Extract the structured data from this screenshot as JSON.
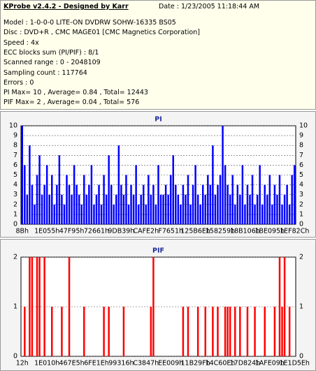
{
  "header": {
    "title": "KProbe v2.4.2 - Designed by Karr",
    "date": "Date : 1/23/2005 11:18:44 AM",
    "lines": [
      "Model : 1-0-0-0 LITE-ON DVDRW SOHW-16335 BS05",
      "Disc : DVD+R , CMC MAGE01 [CMC Magnetics Corporation]",
      "Speed : 4x",
      "ECC blocks sum (PI/PIF) : 8/1",
      "Scanned range : 0 - 2048109",
      "Sampling count : 117764",
      "Errors : 0",
      "PI Max= 10 , Average= 0.84 , Total= 12443",
      "PIF Max= 2 , Average= 0.04 , Total= 576"
    ]
  },
  "chart_data": [
    {
      "type": "bar",
      "title": "PI",
      "color": "#0000ff",
      "grid": true,
      "categories": [
        "8Bh",
        null,
        null,
        null,
        null,
        null,
        null,
        null,
        null,
        null,
        "1E055h",
        null,
        null,
        null,
        null,
        null,
        null,
        null,
        null,
        null,
        "47F95h",
        null,
        null,
        null,
        null,
        null,
        null,
        null,
        null,
        null,
        "72661h",
        null,
        null,
        null,
        null,
        null,
        null,
        null,
        null,
        null,
        "9DB39h",
        null,
        null,
        null,
        null,
        null,
        null,
        null,
        null,
        null,
        "CAFE2h",
        null,
        null,
        null,
        null,
        null,
        null,
        null,
        null,
        null,
        "F7651h",
        null,
        null,
        null,
        null,
        null,
        null,
        null,
        null,
        null,
        "125B6Eh",
        null,
        null,
        null,
        null,
        null,
        null,
        null,
        null,
        null,
        "158259h",
        null,
        null,
        null,
        null,
        null,
        null,
        null,
        null,
        null,
        "18B106h",
        null,
        null,
        null,
        null,
        null,
        null,
        null,
        null,
        null,
        "1BE095h",
        null,
        null,
        null,
        null,
        null,
        null,
        null,
        null,
        null,
        "1EF82Ch"
      ],
      "values": [
        10,
        6,
        3,
        8,
        4,
        2,
        5,
        7,
        3,
        4,
        6,
        3,
        5,
        2,
        4,
        7,
        3,
        2,
        5,
        4,
        3,
        6,
        4,
        3,
        2,
        5,
        3,
        4,
        6,
        2,
        3,
        4,
        2,
        5,
        3,
        7,
        4,
        2,
        3,
        8,
        4,
        3,
        5,
        2,
        4,
        3,
        6,
        2,
        3,
        4,
        2,
        5,
        3,
        4,
        2,
        6,
        3,
        3,
        4,
        3,
        5,
        7,
        4,
        3,
        2,
        4,
        3,
        5,
        2,
        4,
        6,
        3,
        2,
        4,
        3,
        5,
        4,
        8,
        3,
        4,
        5,
        10,
        6,
        4,
        3,
        5,
        2,
        4,
        3,
        6,
        2,
        4,
        3,
        5,
        2,
        3,
        6,
        2,
        4,
        3,
        5,
        2,
        4,
        3,
        5,
        2,
        3,
        4,
        2,
        5,
        6
      ],
      "ylim": [
        0,
        10
      ],
      "yticks": [
        0,
        1,
        2,
        3,
        4,
        5,
        6,
        7,
        8,
        9,
        10
      ]
    },
    {
      "type": "bar",
      "title": "PIF",
      "color": "#ff0000",
      "grid": true,
      "categories": [
        "12h",
        null,
        null,
        null,
        null,
        null,
        null,
        null,
        null,
        null,
        "1E010h",
        null,
        null,
        null,
        null,
        null,
        null,
        null,
        null,
        null,
        "467E5h",
        null,
        null,
        null,
        null,
        null,
        null,
        null,
        null,
        null,
        "6FE1Eh",
        null,
        null,
        null,
        null,
        null,
        null,
        null,
        null,
        null,
        "99316h",
        null,
        null,
        null,
        null,
        null,
        null,
        null,
        null,
        null,
        "C3847h",
        null,
        null,
        null,
        null,
        null,
        null,
        null,
        null,
        null,
        "EE009h",
        null,
        null,
        null,
        null,
        null,
        null,
        null,
        null,
        null,
        "11B29Fh",
        null,
        null,
        null,
        null,
        null,
        null,
        null,
        null,
        null,
        "14C60Eh",
        null,
        null,
        null,
        null,
        null,
        null,
        null,
        null,
        null,
        "17D824h",
        null,
        null,
        null,
        null,
        null,
        null,
        null,
        null,
        null,
        "1AFE09h",
        null,
        null,
        null,
        null,
        null,
        null,
        null,
        null,
        null,
        "1E1D5Eh"
      ],
      "values": [
        0,
        1,
        0,
        2,
        2,
        0,
        2,
        2,
        0,
        2,
        0,
        0,
        1,
        0,
        0,
        0,
        1,
        0,
        0,
        2,
        0,
        0,
        0,
        0,
        0,
        1,
        0,
        0,
        0,
        0,
        0,
        0,
        0,
        1,
        0,
        1,
        0,
        0,
        0,
        0,
        0,
        1,
        0,
        0,
        0,
        0,
        0,
        0,
        0,
        0,
        0,
        0,
        1,
        2,
        0,
        0,
        0,
        0,
        0,
        0,
        0,
        0,
        0,
        0,
        0,
        1,
        0,
        1,
        0,
        0,
        0,
        1,
        0,
        0,
        1,
        0,
        0,
        1,
        0,
        1,
        0,
        0,
        1,
        1,
        1,
        0,
        1,
        0,
        1,
        0,
        0,
        1,
        0,
        0,
        1,
        0,
        0,
        0,
        1,
        0,
        0,
        0,
        1,
        0,
        2,
        1,
        2,
        0,
        1,
        0,
        0
      ],
      "ylim": [
        0,
        2
      ],
      "yticks": [
        0,
        1,
        2
      ]
    }
  ]
}
